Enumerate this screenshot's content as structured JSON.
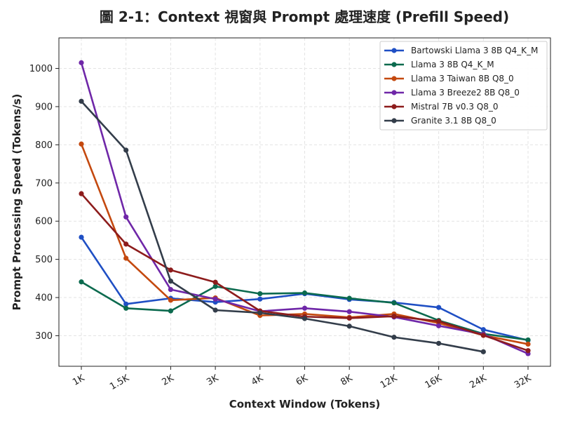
{
  "chart_data": {
    "type": "line",
    "title": "圖 2-1：Context 視窗與 Prompt 處理速度 (Prefill Speed)",
    "xlabel": "Context Window (Tokens)",
    "ylabel": "Prompt Processing Speed (Tokens/s)",
    "categories": [
      "1K",
      "1.5K",
      "2K",
      "3K",
      "4K",
      "6K",
      "8K",
      "12K",
      "16K",
      "24K",
      "32K"
    ],
    "ylim": [
      220,
      1080
    ],
    "yticks": [
      300,
      400,
      500,
      600,
      700,
      800,
      900,
      1000
    ],
    "grid": true,
    "legend_position": "top-right",
    "series": [
      {
        "name": "Bartowski Llama 3 8B Q4_K_M",
        "color": "#1f4fc4",
        "values": [
          558,
          383,
          398,
          388,
          396,
          410,
          395,
          387,
          374,
          316,
          288
        ]
      },
      {
        "name": "Llama 3 8B Q4_K_M",
        "color": "#0b6a4e",
        "values": [
          441,
          372,
          365,
          429,
          410,
          412,
          398,
          386,
          340,
          305,
          289
        ]
      },
      {
        "name": "Llama 3 Taiwan 8B Q8_0",
        "color": "#c4490f",
        "values": [
          802,
          503,
          393,
          399,
          353,
          357,
          348,
          357,
          333,
          301,
          278
        ]
      },
      {
        "name": "Llama 3 Breeze2 8B Q8_0",
        "color": "#6f27a8",
        "values": [
          1015,
          611,
          421,
          396,
          364,
          372,
          363,
          349,
          326,
          304,
          253
        ]
      },
      {
        "name": "Mistral 7B v0.3 Q8_0",
        "color": "#8d1c1c",
        "values": [
          672,
          540,
          472,
          440,
          365,
          350,
          346,
          351,
          338,
          301,
          261
        ]
      },
      {
        "name": "Granite 3.1 8B Q8_0",
        "color": "#333d4a",
        "values": [
          914,
          786,
          443,
          367,
          360,
          345,
          325,
          296,
          280,
          258,
          null
        ]
      }
    ]
  }
}
